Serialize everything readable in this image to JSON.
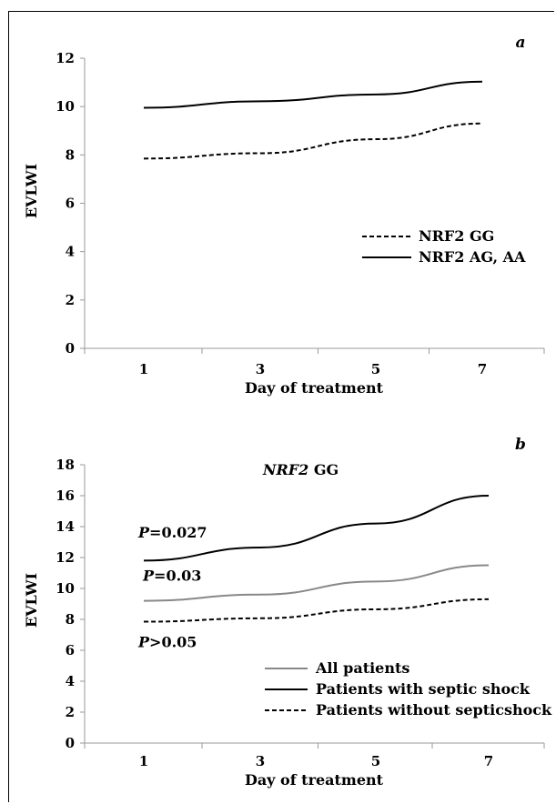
{
  "chart_data": [
    {
      "type": "line",
      "panel_label": "a",
      "title": "",
      "xlabel": "Day of treatment",
      "ylabel": "EVLWI",
      "categories": [
        "1",
        "3",
        "5",
        "7"
      ],
      "ylim": [
        0,
        12
      ],
      "yticks": [
        0,
        2,
        4,
        6,
        8,
        10,
        12
      ],
      "grid": false,
      "legend_position": "right",
      "series": [
        {
          "name": "NRF2 GG",
          "style": "dashed",
          "color": "#000000",
          "values": [
            7.85,
            8.07,
            8.65,
            9.3
          ]
        },
        {
          "name": "NRF2 AG, AA",
          "style": "solid",
          "color": "#000000",
          "values": [
            9.95,
            10.22,
            10.5,
            11.03
          ]
        }
      ]
    },
    {
      "type": "line",
      "panel_label": "b",
      "title_italic": "NRF2",
      "title_rest": " GG",
      "xlabel": "Day of treatment",
      "ylabel": "EVLWI",
      "categories": [
        "1",
        "3",
        "5",
        "7"
      ],
      "ylim": [
        0,
        18
      ],
      "yticks": [
        0,
        2,
        4,
        6,
        8,
        10,
        12,
        14,
        16,
        18
      ],
      "grid": false,
      "legend_position": "bottom-right",
      "series": [
        {
          "name": "All patients",
          "style": "solid",
          "color": "#888888",
          "values": [
            9.2,
            9.6,
            10.45,
            11.5
          ]
        },
        {
          "name": "Patients with septic shock",
          "style": "solid",
          "color": "#000000",
          "values": [
            11.8,
            12.65,
            14.2,
            16.0
          ]
        },
        {
          "name": "Patients without septicshock",
          "style": "dashed",
          "color": "#000000",
          "values": [
            7.85,
            8.07,
            8.65,
            9.3
          ]
        }
      ],
      "annotations": [
        {
          "var": "P",
          "rest": "=0.027",
          "anchor_value": 13.6
        },
        {
          "var": "P",
          "rest": "=0.03",
          "anchor_value": 10.8
        },
        {
          "var": "P",
          "rest": ">0.05",
          "anchor_value": 6.5
        }
      ]
    }
  ]
}
